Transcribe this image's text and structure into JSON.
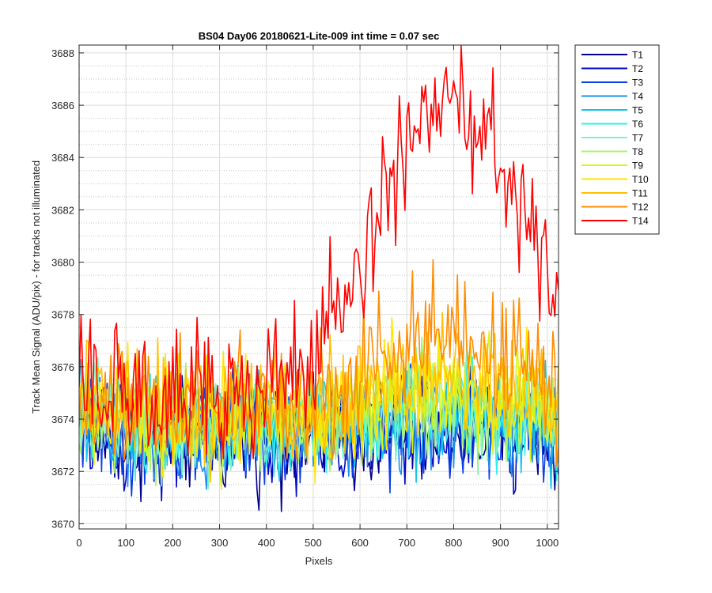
{
  "chart_data": {
    "type": "line",
    "title": "BS04 Day06 20180621-Lite-009 int time = 0.07 sec",
    "xlabel": "Pixels",
    "ylabel": "Track Mean Signal (ADU/pix) - for tracks not illuminated",
    "xlim": [
      0,
      1024
    ],
    "ylim": [
      3669.8,
      3688.3
    ],
    "xticks": [
      0,
      100,
      200,
      300,
      400,
      500,
      600,
      700,
      800,
      900,
      1000
    ],
    "yticks": [
      3670,
      3672,
      3674,
      3676,
      3678,
      3680,
      3682,
      3684,
      3686,
      3688
    ],
    "grid": true,
    "minor_grid": true,
    "legend_position": "outside-top-right",
    "x_step": 4,
    "series": [
      {
        "name": "T1",
        "color": "#00008f",
        "base": 3673.3,
        "hump": 0.2,
        "noise": 1.05
      },
      {
        "name": "T2",
        "color": "#0008c4",
        "base": 3673.4,
        "hump": 0.3,
        "noise": 1.05
      },
      {
        "name": "T3",
        "color": "#0a3ee6",
        "base": 3673.5,
        "hump": 0.3,
        "noise": 1.0
      },
      {
        "name": "T4",
        "color": "#1f8ff0",
        "base": 3673.6,
        "hump": 0.4,
        "noise": 0.95
      },
      {
        "name": "T5",
        "color": "#13c3ea",
        "base": 3673.7,
        "hump": 0.4,
        "noise": 0.95
      },
      {
        "name": "T6",
        "color": "#2ef0e8",
        "base": 3673.8,
        "hump": 0.5,
        "noise": 0.95
      },
      {
        "name": "T7",
        "color": "#7ff3c0",
        "base": 3673.9,
        "hump": 0.5,
        "noise": 0.95
      },
      {
        "name": "T8",
        "color": "#a6f56f",
        "base": 3674.0,
        "hump": 0.6,
        "noise": 1.0
      },
      {
        "name": "T9",
        "color": "#d9f51a",
        "base": 3674.1,
        "hump": 0.8,
        "noise": 1.0
      },
      {
        "name": "T10",
        "color": "#ffe600",
        "base": 3674.2,
        "hump": 1.0,
        "noise": 1.05
      },
      {
        "name": "T11",
        "color": "#ffc000",
        "base": 3674.3,
        "hump": 1.5,
        "noise": 1.1
      },
      {
        "name": "T12",
        "color": "#ff8c00",
        "base": 3674.5,
        "hump": 3.0,
        "noise": 1.2
      },
      {
        "name": "T14",
        "color": "#ff0000",
        "base": 3674.7,
        "hump": 11.6,
        "noise": 1.3
      }
    ]
  }
}
